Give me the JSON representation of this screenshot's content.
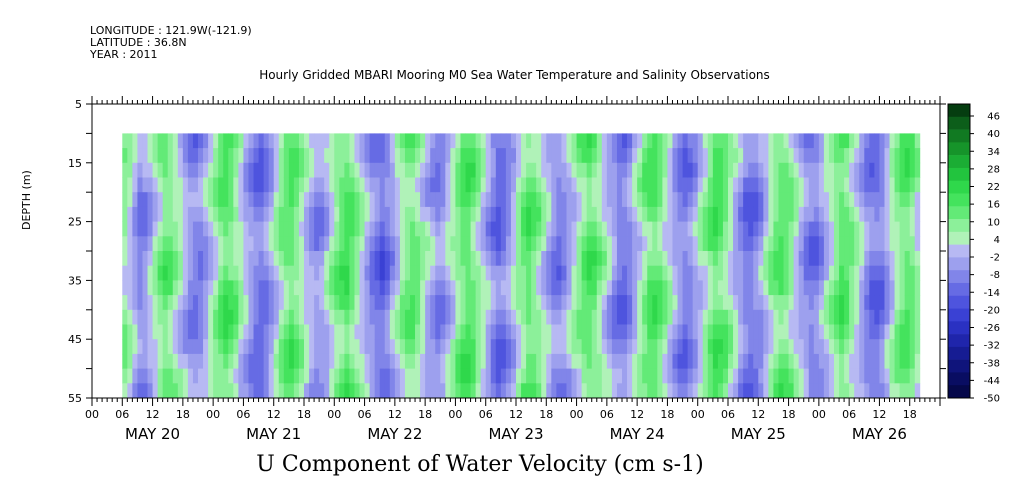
{
  "header": {
    "longitude": "LONGITUDE : 121.9W(-121.9)",
    "latitude": "LATITUDE : 36.8N",
    "year": "YEAR : 2011",
    "title": "Hourly Gridded MBARI Mooring M0 Sea Water Temperature and Salinity Observations"
  },
  "chart_data": {
    "type": "heatmap",
    "title": "Hourly Gridded MBARI Mooring M0 Sea Water Temperature and Salinity Observations",
    "xlabel": "U Component of Water Velocity (cm s-1)",
    "ylabel": "DEPTH (m)",
    "ylim": [
      55,
      5
    ],
    "y_ticks": [
      5,
      15,
      25,
      35,
      45,
      55
    ],
    "x_hour_ticks": [
      "00",
      "06",
      "12",
      "18"
    ],
    "x_days": [
      "MAY 20",
      "MAY 21",
      "MAY 22",
      "MAY 23",
      "MAY 24",
      "MAY 25",
      "MAY 26"
    ],
    "data_start": "MAY 20 06:00",
    "data_end": "MAY 26 23:00",
    "depth_top": 10,
    "depth_bottom": 55,
    "colorbar_labels": [
      46,
      40,
      34,
      28,
      22,
      16,
      10,
      4,
      -2,
      -8,
      -14,
      -20,
      -26,
      -32,
      -38,
      -44,
      -50
    ],
    "colorbar_range": [
      -50,
      49
    ],
    "colorbar_colors": [
      "#053d10",
      "#0c5e1a",
      "#117a22",
      "#16942a",
      "#1bad34",
      "#22c43e",
      "#2fd84b",
      "#44e35d",
      "#63ea77",
      "#8cf09a",
      "#b0f2b8",
      "#b7b9f3",
      "#9da0ee",
      "#8185e9",
      "#666be4",
      "#4e54de",
      "#3a41d4",
      "#2a31c2",
      "#1f25ab",
      "#161c93",
      "#0f147b",
      "#090d62",
      "#05084a"
    ],
    "u_velocity_by_hour": [
      6,
      2,
      -4,
      -8,
      -6,
      -2,
      3,
      8,
      12,
      10,
      6,
      2,
      -3,
      -7,
      -9,
      -8,
      -4,
      1,
      6,
      11,
      14,
      12,
      8,
      3,
      -2,
      -6,
      -10,
      -12,
      -9,
      -4,
      2,
      7,
      11,
      13,
      10,
      5,
      0,
      -4,
      -7,
      -5,
      -1,
      4,
      9,
      13,
      15,
      12,
      7,
      2,
      -3,
      -8,
      -11,
      -13,
      -10,
      -5,
      1,
      6,
      10,
      12,
      9,
      4,
      -1,
      -5,
      -8,
      -6,
      -2,
      3,
      8,
      12,
      14,
      11,
      6,
      1,
      -4,
      -9,
      -12,
      -10,
      -6,
      -1,
      5,
      10,
      13,
      11,
      7,
      2,
      -3,
      -7,
      -9,
      -7,
      -3,
      2,
      7,
      11,
      14,
      12,
      8,
      3,
      -2,
      -6,
      -10,
      -11,
      -8,
      -3,
      3,
      8,
      12,
      14,
      11,
      6,
      1,
      -4,
      -8,
      -10,
      -8,
      -4,
      1,
      6,
      11,
      15,
      13,
      9,
      4,
      -1,
      -6,
      -10,
      -12,
      -9,
      -5,
      0,
      6,
      10,
      13,
      11,
      7,
      2,
      -3,
      -7,
      -10,
      -9,
      -5,
      0,
      5,
      10,
      14,
      12,
      8,
      3,
      -2,
      -7,
      -11,
      -12,
      -9,
      -4,
      2,
      7,
      11,
      13,
      10,
      5
    ]
  },
  "colors": {
    "frame": "#000000",
    "background": "#ffffff"
  }
}
